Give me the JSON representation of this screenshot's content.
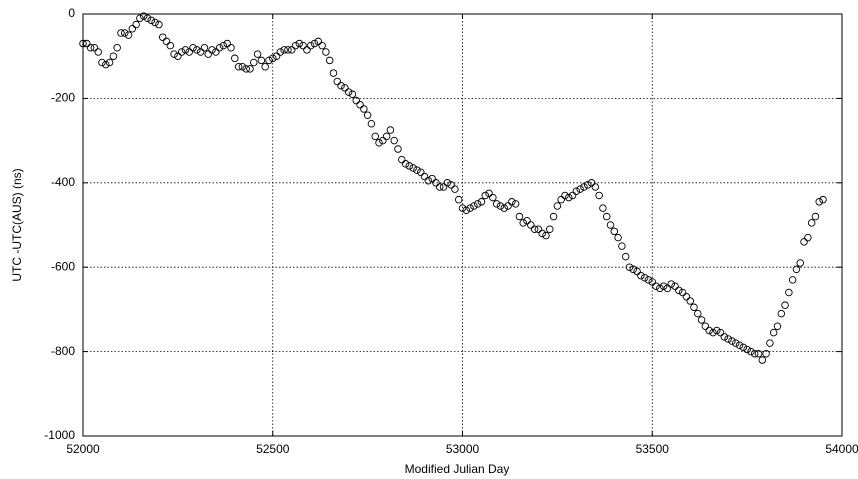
{
  "chart_data": {
    "type": "scatter",
    "x_label": "Modified Julian Day",
    "y_label": "UTC -UTC(AUS) (ns)",
    "xlim": [
      52000,
      54000
    ],
    "ylim": [
      -1000,
      0
    ],
    "xticks": [
      52000,
      52500,
      53000,
      53500,
      54000
    ],
    "yticks": [
      -1000,
      -800,
      -600,
      -400,
      -200,
      0
    ],
    "grid": true,
    "color": "#000000",
    "x": [
      52000,
      52010,
      52020,
      52030,
      52040,
      52050,
      52060,
      52070,
      52080,
      52090,
      52100,
      52110,
      52120,
      52130,
      52140,
      52150,
      52160,
      52170,
      52180,
      52190,
      52200,
      52210,
      52220,
      52230,
      52240,
      52250,
      52260,
      52270,
      52280,
      52290,
      52300,
      52310,
      52320,
      52330,
      52340,
      52350,
      52360,
      52370,
      52380,
      52390,
      52400,
      52410,
      52420,
      52430,
      52440,
      52450,
      52460,
      52470,
      52480,
      52490,
      52500,
      52510,
      52520,
      52530,
      52540,
      52550,
      52560,
      52570,
      52580,
      52590,
      52600,
      52610,
      52620,
      52630,
      52640,
      52650,
      52660,
      52670,
      52680,
      52690,
      52700,
      52710,
      52720,
      52730,
      52740,
      52750,
      52760,
      52770,
      52780,
      52790,
      52800,
      52810,
      52820,
      52830,
      52840,
      52850,
      52860,
      52870,
      52880,
      52890,
      52900,
      52910,
      52920,
      52930,
      52940,
      52950,
      52960,
      52970,
      52980,
      52990,
      53000,
      53010,
      53020,
      53030,
      53040,
      53050,
      53060,
      53070,
      53080,
      53090,
      53100,
      53110,
      53120,
      53130,
      53140,
      53150,
      53160,
      53170,
      53180,
      53190,
      53200,
      53210,
      53220,
      53230,
      53240,
      53250,
      53260,
      53270,
      53280,
      53290,
      53300,
      53310,
      53320,
      53330,
      53340,
      53350,
      53360,
      53370,
      53380,
      53390,
      53400,
      53410,
      53420,
      53430,
      53440,
      53450,
      53460,
      53470,
      53480,
      53490,
      53500,
      53510,
      53520,
      53530,
      53540,
      53550,
      53560,
      53570,
      53580,
      53590,
      53600,
      53610,
      53620,
      53630,
      53640,
      53650,
      53660,
      53670,
      53680,
      53690,
      53700,
      53710,
      53720,
      53730,
      53740,
      53750,
      53760,
      53770,
      53780,
      53790,
      53800,
      53810,
      53820,
      53830,
      53840,
      53850,
      53860,
      53870,
      53880,
      53890,
      53900,
      53910,
      53920,
      53930,
      53940,
      53950
    ],
    "values": [
      -70,
      -70,
      -80,
      -80,
      -90,
      -115,
      -120,
      -115,
      -100,
      -80,
      -45,
      -45,
      -50,
      -35,
      -25,
      -10,
      -5,
      -10,
      -15,
      -20,
      -25,
      -55,
      -65,
      -75,
      -95,
      -100,
      -90,
      -85,
      -90,
      -80,
      -85,
      -90,
      -80,
      -95,
      -85,
      -90,
      -80,
      -75,
      -70,
      -80,
      -105,
      -125,
      -125,
      -130,
      -130,
      -115,
      -95,
      -110,
      -125,
      -110,
      -105,
      -100,
      -90,
      -85,
      -85,
      -85,
      -75,
      -70,
      -75,
      -85,
      -75,
      -70,
      -65,
      -75,
      -90,
      -110,
      -140,
      -160,
      -170,
      -175,
      -185,
      -190,
      -205,
      -215,
      -225,
      -240,
      -260,
      -290,
      -305,
      -300,
      -290,
      -275,
      -300,
      -320,
      -345,
      -355,
      -360,
      -365,
      -370,
      -375,
      -385,
      -395,
      -390,
      -400,
      -410,
      -410,
      -400,
      -405,
      -415,
      -440,
      -460,
      -465,
      -460,
      -455,
      -450,
      -445,
      -430,
      -425,
      -435,
      -450,
      -455,
      -460,
      -455,
      -445,
      -450,
      -480,
      -495,
      -490,
      -500,
      -510,
      -510,
      -520,
      -525,
      -510,
      -480,
      -455,
      -440,
      -430,
      -435,
      -430,
      -420,
      -415,
      -410,
      -405,
      -400,
      -410,
      -430,
      -460,
      -480,
      -500,
      -515,
      -530,
      -550,
      -575,
      -600,
      -605,
      -610,
      -620,
      -625,
      -630,
      -635,
      -645,
      -650,
      -645,
      -650,
      -640,
      -645,
      -655,
      -660,
      -670,
      -680,
      -695,
      -710,
      -725,
      -740,
      -750,
      -755,
      -750,
      -755,
      -765,
      -770,
      -775,
      -780,
      -785,
      -790,
      -795,
      -800,
      -805,
      -805,
      -820,
      -805,
      -780,
      -755,
      -740,
      -710,
      -690,
      -660,
      -630,
      -605,
      -590,
      -540,
      -530,
      -495,
      -480,
      -445,
      -440
    ]
  }
}
